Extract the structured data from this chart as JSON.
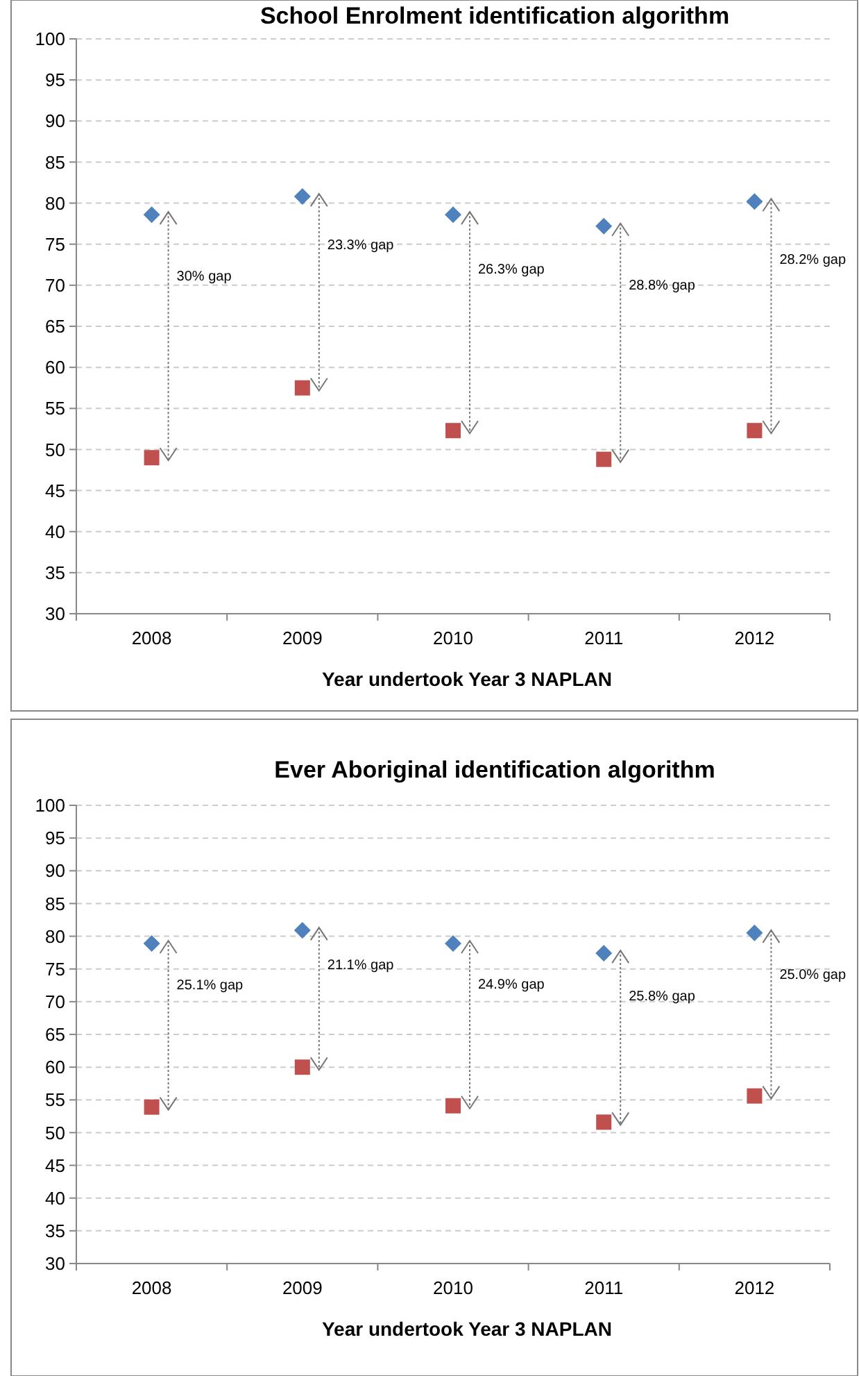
{
  "chart_data": [
    {
      "type": "scatter",
      "title": "School Enrolment identification algorithm",
      "xlabel": "Year undertook Year 3 NAPLAN",
      "categories": [
        "2008",
        "2009",
        "2010",
        "2011",
        "2012"
      ],
      "ylim": [
        30,
        100
      ],
      "yticks": [
        30,
        35,
        40,
        45,
        50,
        55,
        60,
        65,
        70,
        75,
        80,
        85,
        90,
        95,
        100
      ],
      "grid": "y",
      "series": [
        {
          "color": "#4f81bd",
          "marker": "diamond",
          "values": [
            78.6,
            80.8,
            78.6,
            77.2,
            80.2
          ]
        },
        {
          "color": "#c0504d",
          "marker": "square",
          "values": [
            49,
            57.5,
            52.3,
            48.8,
            52.3
          ]
        }
      ],
      "annotations": [
        "30% gap",
        "23.3% gap",
        "26.3% gap",
        "28.8% gap",
        "28.2% gap"
      ]
    },
    {
      "type": "scatter",
      "title": "Ever Aboriginal identification algorithm",
      "xlabel": "Year undertook Year 3 NAPLAN",
      "categories": [
        "2008",
        "2009",
        "2010",
        "2011",
        "2012"
      ],
      "ylim": [
        30,
        100
      ],
      "yticks": [
        30,
        35,
        40,
        45,
        50,
        55,
        60,
        65,
        70,
        75,
        80,
        85,
        90,
        95,
        100
      ],
      "grid": "y",
      "series": [
        {
          "color": "#4f81bd",
          "marker": "diamond",
          "values": [
            78.9,
            80.9,
            78.9,
            77.4,
            80.5
          ]
        },
        {
          "color": "#c0504d",
          "marker": "square",
          "values": [
            53.9,
            60,
            54.1,
            51.6,
            55.6
          ]
        }
      ],
      "annotations": [
        "25.1% gap",
        "21.1% gap",
        "24.9% gap",
        "25.8% gap",
        "25.0% gap"
      ]
    }
  ]
}
